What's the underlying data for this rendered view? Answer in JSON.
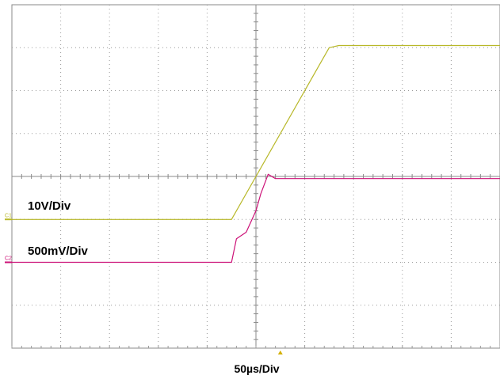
{
  "chart_data": {
    "type": "line",
    "title": "",
    "xlabel": "50µs/Div",
    "ylabel": "",
    "grid": true,
    "x_unit": "div",
    "y_unit": "div",
    "xlim": [
      -5,
      5
    ],
    "ylim": [
      -4,
      4
    ],
    "divisions": {
      "x": 10,
      "y": 8
    },
    "trigger_position_div": 0.5,
    "series": [
      {
        "name": "C1",
        "scale_label": "10V/Div",
        "color": "#b8b829",
        "baseline_div": -1,
        "points": [
          [
            -5,
            -1
          ],
          [
            -0.5,
            -1
          ],
          [
            1.5,
            3
          ],
          [
            1.7,
            3.05
          ],
          [
            5,
            3.05
          ]
        ]
      },
      {
        "name": "C2",
        "scale_label": "500mV/Div",
        "color": "#cc1177",
        "baseline_div": -2,
        "points": [
          [
            -5,
            -2
          ],
          [
            -0.5,
            -2
          ],
          [
            -0.4,
            -1.45
          ],
          [
            -0.2,
            -1.3
          ],
          [
            0.0,
            -0.8
          ],
          [
            0.1,
            -0.4
          ],
          [
            0.25,
            0.05
          ],
          [
            0.4,
            -0.05
          ],
          [
            5,
            -0.05
          ]
        ]
      }
    ]
  }
}
